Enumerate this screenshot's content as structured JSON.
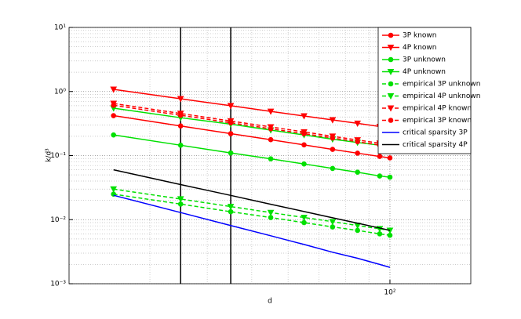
{
  "chart_data": {
    "type": "line",
    "xlabel": "d",
    "ylabel": "k/d³",
    "x": [
      25,
      35,
      45,
      55,
      65,
      75,
      85,
      95,
      100
    ],
    "xlim": [
      20,
      150
    ],
    "ylim": [
      0.001,
      10
    ],
    "log_x": true,
    "log_y": true,
    "grid": true,
    "legend": "upper right",
    "xticks": [
      {
        "value": 100,
        "label": "10²"
      }
    ],
    "yticks": [
      {
        "value": 0.001,
        "label": "10⁻³"
      },
      {
        "value": 0.01,
        "label": "10⁻²"
      },
      {
        "value": 0.1,
        "label": "10⁻¹"
      },
      {
        "value": 1,
        "label": "10⁰"
      },
      {
        "value": 10,
        "label": "10¹"
      }
    ],
    "vlines": [
      35,
      45
    ],
    "vline_color": "#000000",
    "series": [
      {
        "name": "3P known",
        "color": "#ff0000",
        "marker": "o",
        "dashed": false,
        "values": [
          0.42,
          0.29,
          0.22,
          0.177,
          0.147,
          0.125,
          0.109,
          0.097,
          0.092
        ]
      },
      {
        "name": "4P known",
        "color": "#ff0000",
        "marker": "v",
        "dashed": false,
        "values": [
          1.08,
          0.77,
          0.6,
          0.49,
          0.415,
          0.36,
          0.318,
          0.284,
          0.27
        ]
      },
      {
        "name": "3P unknown",
        "color": "#00e000",
        "marker": "o",
        "dashed": false,
        "values": [
          0.21,
          0.145,
          0.11,
          0.089,
          0.074,
          0.063,
          0.055,
          0.048,
          0.046
        ]
      },
      {
        "name": "4P unknown",
        "color": "#00e000",
        "marker": "v",
        "dashed": false,
        "values": [
          0.55,
          0.39,
          0.31,
          0.25,
          0.21,
          0.18,
          0.16,
          0.145,
          0.138
        ]
      },
      {
        "name": "empirical 3P unknown",
        "color": "#00e000",
        "marker": "o",
        "dashed": true,
        "values": [
          0.025,
          0.0175,
          0.0133,
          0.0108,
          0.009,
          0.0077,
          0.0068,
          0.006,
          0.0057
        ]
      },
      {
        "name": "empirical 4P unknown",
        "color": "#00e000",
        "marker": "v",
        "dashed": true,
        "values": [
          0.03,
          0.021,
          0.016,
          0.0129,
          0.0108,
          0.0093,
          0.0081,
          0.0072,
          0.0068
        ]
      },
      {
        "name": "empirical 4P known",
        "color": "#ff0000",
        "marker": "v",
        "dashed": true,
        "values": [
          0.65,
          0.454,
          0.346,
          0.28,
          0.234,
          0.2,
          0.175,
          0.156,
          0.148
        ]
      },
      {
        "name": "empirical 3P known",
        "color": "#ff0000",
        "marker": "o",
        "dashed": true,
        "values": [
          0.61,
          0.426,
          0.325,
          0.262,
          0.22,
          0.188,
          0.165,
          0.146,
          0.138
        ]
      },
      {
        "name": "critical sparsity 3P",
        "color": "#0000ff",
        "marker": null,
        "dashed": false,
        "values": [
          0.024,
          0.0129,
          0.0081,
          0.0056,
          0.0041,
          0.0031,
          0.0025,
          0.002,
          0.0018
        ]
      },
      {
        "name": "critical sparsity 4P",
        "color": "#000000",
        "marker": null,
        "dashed": false,
        "values": [
          0.06,
          0.0353,
          0.0239,
          0.0174,
          0.0134,
          0.0107,
          0.0088,
          0.0074,
          0.0068
        ]
      }
    ]
  }
}
